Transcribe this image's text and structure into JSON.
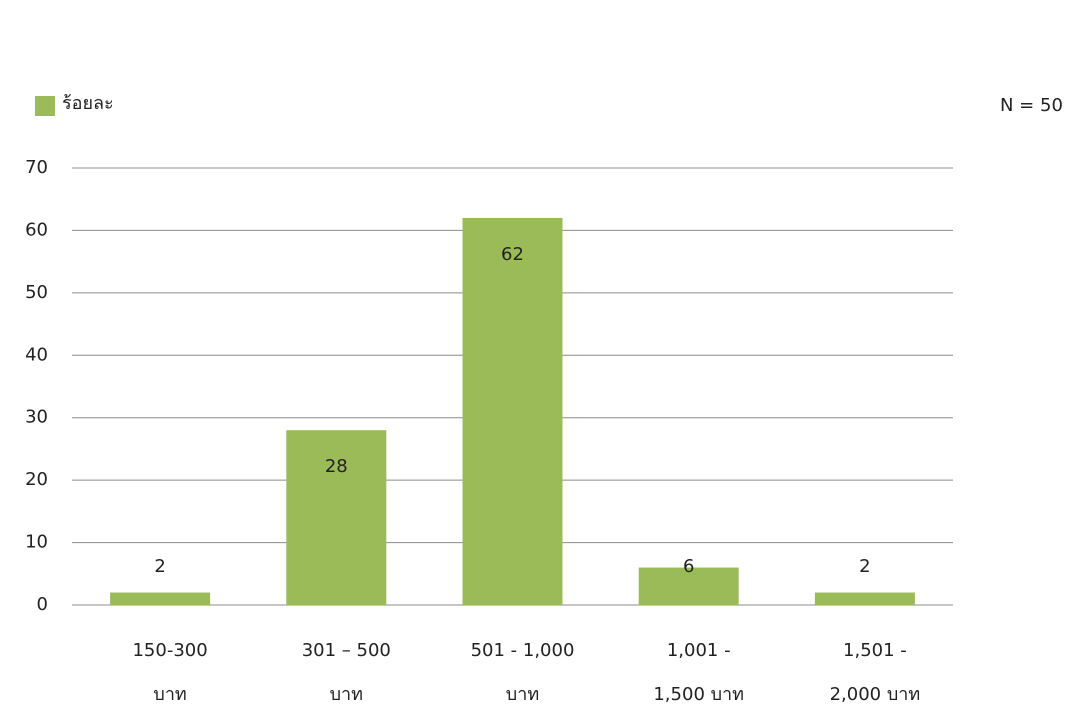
{
  "chart_data": {
    "type": "bar",
    "legend": "ร้อยละ",
    "annotation": "N = 50",
    "categories": [
      [
        "150-300",
        "บาท"
      ],
      [
        "301 – 500",
        "บาท"
      ],
      [
        "501 - 1,000",
        "บาท"
      ],
      [
        "1,001 -",
        "1,500 บาท"
      ],
      [
        "1,501 -",
        "2,000 บาท"
      ]
    ],
    "values": [
      2,
      28,
      62,
      6,
      2
    ],
    "color": "#9bbb59",
    "ylim": [
      0,
      70
    ],
    "yticks": [
      0,
      10,
      20,
      30,
      40,
      50,
      60,
      70
    ],
    "grid": true
  }
}
